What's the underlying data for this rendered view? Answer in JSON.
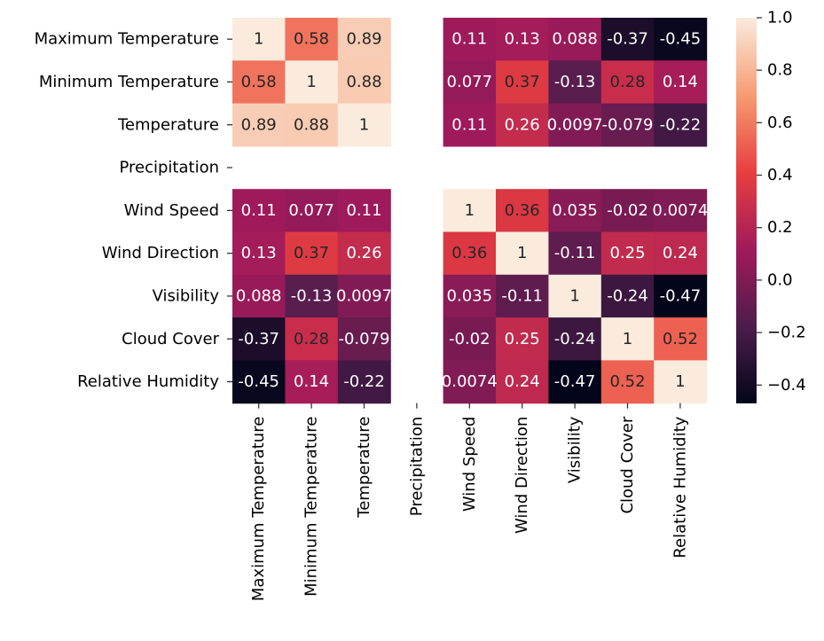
{
  "chart_data": {
    "type": "heatmap",
    "title": "",
    "xlabel": "",
    "ylabel": "",
    "variables": [
      "Maximum Temperature",
      "Minimum Temperature",
      "Temperature",
      "Precipitation",
      "Wind Speed",
      "Wind Direction",
      "Visibility",
      "Cloud Cover",
      "Relative Humidity"
    ],
    "matrix": [
      [
        1,
        0.58,
        0.89,
        null,
        0.11,
        0.13,
        0.088,
        -0.37,
        -0.45
      ],
      [
        0.58,
        1,
        0.88,
        null,
        0.077,
        0.37,
        -0.13,
        0.28,
        0.14
      ],
      [
        0.89,
        0.88,
        1,
        null,
        0.11,
        0.26,
        0.0097,
        -0.079,
        -0.22
      ],
      [
        null,
        null,
        null,
        null,
        null,
        null,
        null,
        null,
        null
      ],
      [
        0.11,
        0.077,
        0.11,
        null,
        1,
        0.36,
        0.035,
        -0.02,
        0.0074
      ],
      [
        0.13,
        0.37,
        0.26,
        null,
        0.36,
        1,
        -0.11,
        0.25,
        0.24
      ],
      [
        0.088,
        -0.13,
        0.0097,
        null,
        0.035,
        -0.11,
        1,
        -0.24,
        -0.47
      ],
      [
        -0.37,
        0.28,
        -0.079,
        null,
        -0.02,
        0.25,
        -0.24,
        1,
        0.52
      ],
      [
        -0.45,
        0.14,
        -0.22,
        null,
        0.0074,
        0.24,
        -0.47,
        0.52,
        1
      ]
    ],
    "cell_labels": [
      [
        "1",
        "0.58",
        "0.89",
        "",
        "0.11",
        "0.13",
        "0.088",
        "-0.37",
        "-0.45"
      ],
      [
        "0.58",
        "1",
        "0.88",
        "",
        "0.077",
        "0.37",
        "-0.13",
        "0.28",
        "0.14"
      ],
      [
        "0.89",
        "0.88",
        "1",
        "",
        "0.11",
        "0.26",
        "0.0097",
        "-0.079",
        "-0.22"
      ],
      [
        "",
        "",
        "",
        "",
        "",
        "",
        "",
        "",
        ""
      ],
      [
        "0.11",
        "0.077",
        "0.11",
        "",
        "1",
        "0.36",
        "0.035",
        "-0.02",
        "0.0074"
      ],
      [
        "0.13",
        "0.37",
        "0.26",
        "",
        "0.36",
        "1",
        "-0.11",
        "0.25",
        "0.24"
      ],
      [
        "0.088",
        "-0.13",
        "0.0097",
        "",
        "0.035",
        "-0.11",
        "1",
        "-0.24",
        "-0.47"
      ],
      [
        "-0.37",
        "0.28",
        "-0.079",
        "",
        "-0.02",
        "0.25",
        "-0.24",
        "1",
        "0.52"
      ],
      [
        "-0.45",
        "0.14",
        "-0.22",
        "",
        "0.0074",
        "0.24",
        "-0.47",
        "0.52",
        "1"
      ]
    ],
    "colorbar": {
      "min": -0.47,
      "max": 1.0,
      "ticks": [
        -0.4,
        -0.2,
        0.0,
        0.2,
        0.4,
        0.6,
        0.8,
        1.0
      ],
      "tick_labels": [
        "−0.4",
        "−0.2",
        "0.0",
        "0.2",
        "0.4",
        "0.6",
        "0.8",
        "1.0"
      ],
      "colormap": "rocket",
      "colormap_stops": [
        "#03051a",
        "#4c1d4b",
        "#a11a5b",
        "#e83f3f",
        "#f69c73",
        "#faebdd"
      ],
      "placement": "right"
    },
    "annotation_threshold": 0.27,
    "annotation_color_dark": "#262626",
    "annotation_color_light": "#ffffff"
  }
}
